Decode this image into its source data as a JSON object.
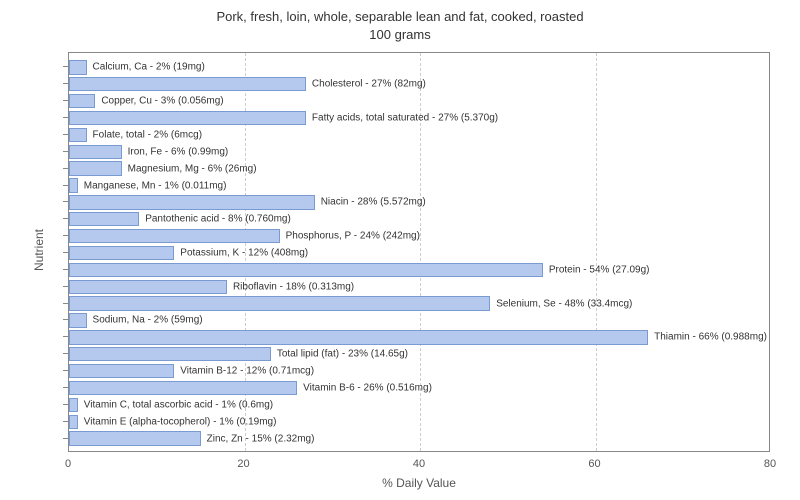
{
  "title_line1": "Pork, fresh, loin, whole, separable lean and fat, cooked, roasted",
  "title_line2": "100 grams",
  "ylabel": "Nutrient",
  "xlabel": "% Daily Value",
  "chart": {
    "type": "bar",
    "xlim": [
      0,
      80
    ],
    "xtick_step": 20,
    "xticks": [
      0,
      20,
      40,
      60,
      80
    ],
    "bar_color": "#b4c9ed",
    "bar_border_color": "#7a9bd1",
    "grid_color": "#cccccc",
    "background_color": "#ffffff",
    "label_fontsize": 10,
    "axis_fontsize": 11,
    "title_fontsize": 13,
    "categories": [
      {
        "label": "Calcium, Ca - 2% (19mg)",
        "value": 2
      },
      {
        "label": "Cholesterol - 27% (82mg)",
        "value": 27
      },
      {
        "label": "Copper, Cu - 3% (0.056mg)",
        "value": 3
      },
      {
        "label": "Fatty acids, total saturated - 27% (5.370g)",
        "value": 27
      },
      {
        "label": "Folate, total - 2% (6mcg)",
        "value": 2
      },
      {
        "label": "Iron, Fe - 6% (0.99mg)",
        "value": 6
      },
      {
        "label": "Magnesium, Mg - 6% (26mg)",
        "value": 6
      },
      {
        "label": "Manganese, Mn - 1% (0.011mg)",
        "value": 1
      },
      {
        "label": "Niacin - 28% (5.572mg)",
        "value": 28
      },
      {
        "label": "Pantothenic acid - 8% (0.760mg)",
        "value": 8
      },
      {
        "label": "Phosphorus, P - 24% (242mg)",
        "value": 24
      },
      {
        "label": "Potassium, K - 12% (408mg)",
        "value": 12
      },
      {
        "label": "Protein - 54% (27.09g)",
        "value": 54
      },
      {
        "label": "Riboflavin - 18% (0.313mg)",
        "value": 18
      },
      {
        "label": "Selenium, Se - 48% (33.4mcg)",
        "value": 48
      },
      {
        "label": "Sodium, Na - 2% (59mg)",
        "value": 2
      },
      {
        "label": "Thiamin - 66% (0.988mg)",
        "value": 66
      },
      {
        "label": "Total lipid (fat) - 23% (14.65g)",
        "value": 23
      },
      {
        "label": "Vitamin B-12 - 12% (0.71mcg)",
        "value": 12
      },
      {
        "label": "Vitamin B-6 - 26% (0.516mg)",
        "value": 26
      },
      {
        "label": "Vitamin C, total ascorbic acid - 1% (0.6mg)",
        "value": 1
      },
      {
        "label": "Vitamin E (alpha-tocopherol) - 1% (0.19mg)",
        "value": 1
      },
      {
        "label": "Zinc, Zn - 15% (2.32mg)",
        "value": 15
      }
    ]
  }
}
